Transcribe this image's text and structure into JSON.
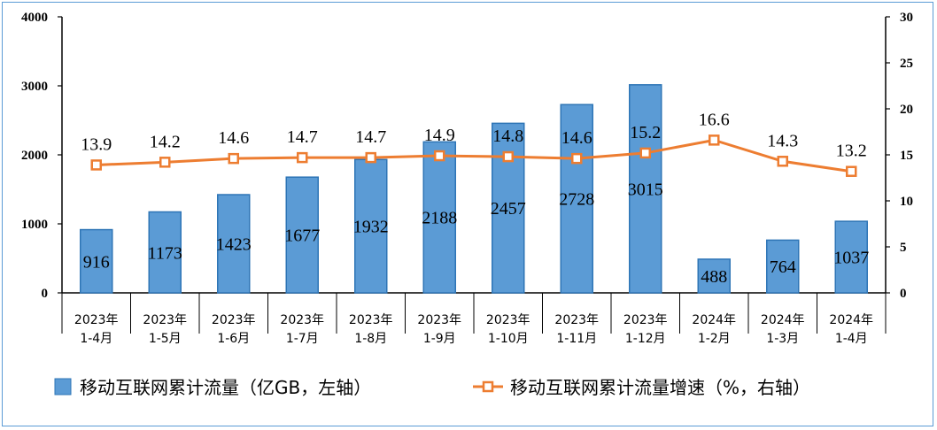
{
  "colors": {
    "bar_fill": "#5b9bd5",
    "bar_stroke": "#2e75b6",
    "line": "#ed7d31",
    "axis": "#000000"
  },
  "legend": {
    "bar_label": "移动互联网累计流量（亿GB，左轴）",
    "line_label": "移动互联网累计流量增速（%，右轴）"
  },
  "chart_data": {
    "type": "bar+line",
    "categories": [
      [
        "2023年",
        "1-4月"
      ],
      [
        "2023年",
        "1-5月"
      ],
      [
        "2023年",
        "1-6月"
      ],
      [
        "2023年",
        "1-7月"
      ],
      [
        "2023年",
        "1-8月"
      ],
      [
        "2023年",
        "1-9月"
      ],
      [
        "2023年",
        "1-10月"
      ],
      [
        "2023年",
        "1-11月"
      ],
      [
        "2023年",
        "1-12月"
      ],
      [
        "2024年",
        "1-2月"
      ],
      [
        "2024年",
        "1-3月"
      ],
      [
        "2024年",
        "1-4月"
      ]
    ],
    "series": [
      {
        "name": "移动互联网累计流量（亿GB，左轴）",
        "type": "bar",
        "axis": "left",
        "values": [
          916,
          1173,
          1423,
          1677,
          1932,
          2188,
          2457,
          2728,
          3015,
          488,
          764,
          1037
        ]
      },
      {
        "name": "移动互联网累计流量增速（%，右轴）",
        "type": "line",
        "axis": "right",
        "values": [
          13.9,
          14.2,
          14.6,
          14.7,
          14.7,
          14.9,
          14.8,
          14.6,
          15.2,
          16.6,
          14.3,
          13.2
        ]
      }
    ],
    "y_left": {
      "min": 0,
      "max": 4000,
      "ticks": [
        0,
        1000,
        2000,
        3000,
        4000
      ]
    },
    "y_right": {
      "min": 0,
      "max": 30,
      "ticks": [
        0,
        5,
        10,
        15,
        20,
        25,
        30
      ]
    },
    "legend_position": "bottom",
    "grid": false
  }
}
